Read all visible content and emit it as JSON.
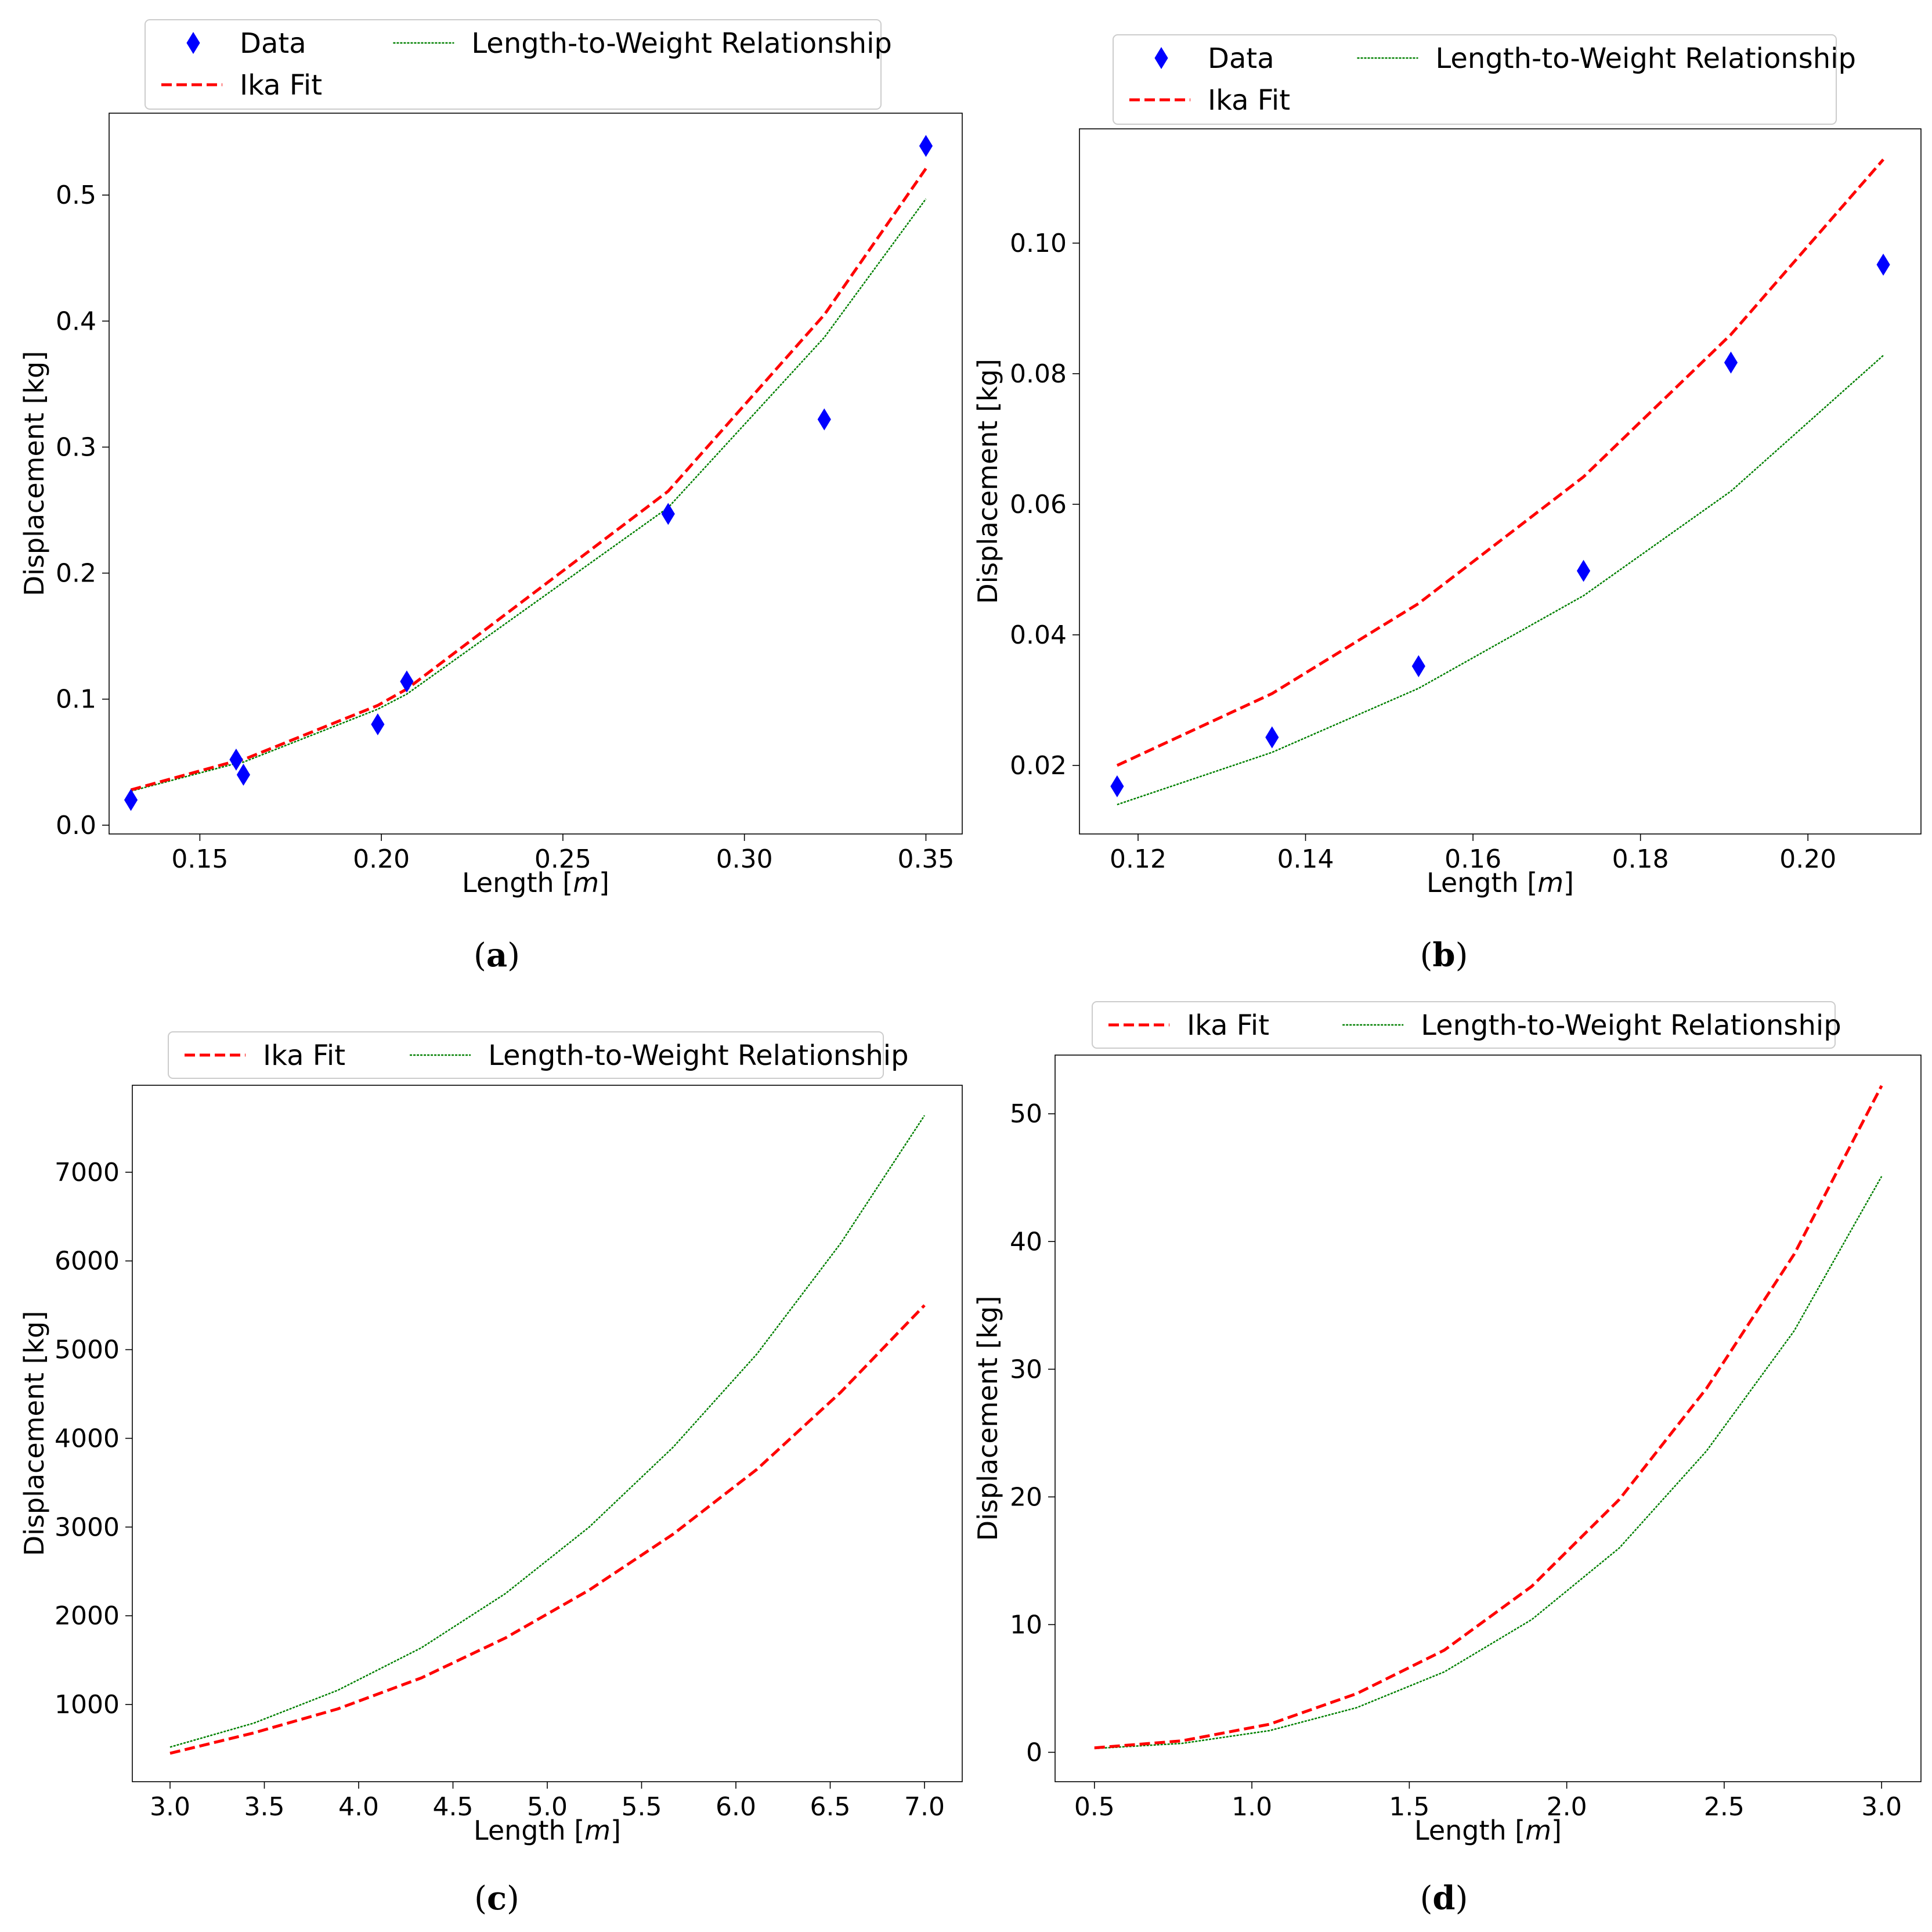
{
  "colors": {
    "data": "#0000ff",
    "ika": "#ff0000",
    "ltw": "#008000"
  },
  "chart_data": [
    {
      "panel": "(a)",
      "caption_letter": "a",
      "type": "line",
      "xlabel_prefix": "Length [",
      "xlabel_unit": "m",
      "xlabel_suffix": "]",
      "ylabel": "Displacement [kg]",
      "xlim": [
        0.125,
        0.36
      ],
      "ylim": [
        -0.007,
        0.565
      ],
      "xticks": [
        0.15,
        0.2,
        0.25,
        0.3,
        0.35
      ],
      "xtick_labels": [
        "0.15",
        "0.20",
        "0.25",
        "0.30",
        "0.35"
      ],
      "yticks": [
        0.0,
        0.1,
        0.2,
        0.3,
        0.4,
        0.5
      ],
      "ytick_labels": [
        "0.0",
        "0.1",
        "0.2",
        "0.3",
        "0.4",
        "0.5"
      ],
      "legend": {
        "position": "top",
        "ncol": 2,
        "entries": [
          "Data",
          "Length-to-Weight Relationship",
          "Ika Fit"
        ]
      },
      "series": [
        {
          "name": "Data",
          "kind": "scatter",
          "color": "#0000ff",
          "x": [
            0.131,
            0.16,
            0.162,
            0.199,
            0.207,
            0.279,
            0.322,
            0.35
          ],
          "y": [
            0.02,
            0.052,
            0.04,
            0.08,
            0.114,
            0.247,
            0.322,
            0.539
          ]
        },
        {
          "name": "Ika Fit",
          "kind": "dashed",
          "color": "#ff0000",
          "x": [
            0.131,
            0.16,
            0.162,
            0.199,
            0.207,
            0.279,
            0.322,
            0.35
          ],
          "y": [
            0.028,
            0.051,
            0.052,
            0.095,
            0.108,
            0.265,
            0.405,
            0.521
          ]
        },
        {
          "name": "Length-to-Weight Relationship",
          "kind": "dotted",
          "color": "#008000",
          "x": [
            0.131,
            0.16,
            0.162,
            0.199,
            0.207,
            0.279,
            0.322,
            0.35
          ],
          "y": [
            0.027,
            0.049,
            0.05,
            0.092,
            0.104,
            0.252,
            0.387,
            0.497
          ]
        }
      ]
    },
    {
      "panel": "(b)",
      "caption_letter": "b",
      "type": "line",
      "xlabel_prefix": "Length [",
      "xlabel_unit": "m",
      "xlabel_suffix": "]",
      "ylabel": "Displacement [kg]",
      "xlim": [
        0.113,
        0.2135
      ],
      "ylim": [
        0.0095,
        0.1175
      ],
      "xticks": [
        0.12,
        0.14,
        0.16,
        0.18,
        0.2
      ],
      "xtick_labels": [
        "0.12",
        "0.14",
        "0.16",
        "0.18",
        "0.20"
      ],
      "yticks": [
        0.02,
        0.04,
        0.06,
        0.08,
        0.1
      ],
      "ytick_labels": [
        "0.02",
        "0.04",
        "0.06",
        "0.08",
        "0.10"
      ],
      "legend": {
        "position": "top",
        "ncol": 2,
        "entries": [
          "Data",
          "Length-to-Weight Relationship",
          "Ika Fit"
        ]
      },
      "series": [
        {
          "name": "Data",
          "kind": "scatter",
          "color": "#0000ff",
          "x": [
            0.1175,
            0.136,
            0.1535,
            0.1732,
            0.1908,
            0.209
          ],
          "y": [
            0.0168,
            0.0243,
            0.0352,
            0.0498,
            0.0817,
            0.0967
          ]
        },
        {
          "name": "Ika Fit",
          "kind": "dashed",
          "color": "#ff0000",
          "x": [
            0.1175,
            0.136,
            0.1535,
            0.1732,
            0.1908,
            0.209
          ],
          "y": [
            0.02,
            0.031,
            0.0448,
            0.0642,
            0.086,
            0.1128
          ]
        },
        {
          "name": "Length-to-Weight Relationship",
          "kind": "dotted",
          "color": "#008000",
          "x": [
            0.1175,
            0.136,
            0.1535,
            0.1732,
            0.1908,
            0.209
          ],
          "y": [
            0.014,
            0.022,
            0.0318,
            0.046,
            0.062,
            0.0828
          ]
        }
      ]
    },
    {
      "panel": "(c)",
      "caption_letter": "c",
      "type": "line",
      "xlabel_prefix": "Length [",
      "xlabel_unit": "m",
      "xlabel_suffix": "]",
      "ylabel": "Displacement [kg]",
      "xlim": [
        2.8,
        7.2
      ],
      "ylim": [
        130,
        7980
      ],
      "xticks": [
        3.0,
        3.5,
        4.0,
        4.5,
        5.0,
        5.5,
        6.0,
        6.5,
        7.0
      ],
      "xtick_labels": [
        "3.0",
        "3.5",
        "4.0",
        "4.5",
        "5.0",
        "5.5",
        "6.0",
        "6.5",
        "7.0"
      ],
      "yticks": [
        1000,
        2000,
        3000,
        4000,
        5000,
        6000,
        7000
      ],
      "ytick_labels": [
        "1000",
        "2000",
        "3000",
        "4000",
        "5000",
        "6000",
        "7000"
      ],
      "legend": {
        "position": "top",
        "ncol": 2,
        "entries": [
          "Ika Fit",
          "Length-to-Weight Relationship"
        ]
      },
      "series": [
        {
          "name": "Ika Fit",
          "kind": "dashed",
          "color": "#ff0000",
          "x": [
            3.0,
            3.444,
            3.889,
            4.333,
            4.778,
            5.222,
            5.667,
            6.111,
            6.556,
            7.0
          ],
          "y": [
            450,
            680,
            950,
            1300,
            1750,
            2290,
            2920,
            3650,
            4520,
            5500
          ]
        },
        {
          "name": "Length-to-Weight Relationship",
          "kind": "dotted",
          "color": "#008000",
          "x": [
            3.0,
            3.444,
            3.889,
            4.333,
            4.778,
            5.222,
            5.667,
            6.111,
            6.556,
            7.0
          ],
          "y": [
            520,
            790,
            1160,
            1640,
            2250,
            3000,
            3900,
            4950,
            6200,
            7640
          ]
        }
      ]
    },
    {
      "panel": "(d)",
      "caption_letter": "d",
      "type": "line",
      "xlabel_prefix": "Length [",
      "xlabel_unit": "m",
      "xlabel_suffix": "]",
      "ylabel": "Displacement [kg]",
      "xlim": [
        0.375,
        3.125
      ],
      "ylim": [
        -2.3,
        54.6
      ],
      "xticks": [
        0.5,
        1.0,
        1.5,
        2.0,
        2.5,
        3.0
      ],
      "xtick_labels": [
        "0.5",
        "1.0",
        "1.5",
        "2.0",
        "2.5",
        "3.0"
      ],
      "yticks": [
        0,
        10,
        20,
        30,
        40,
        50
      ],
      "ytick_labels": [
        "0",
        "10",
        "20",
        "30",
        "40",
        "50"
      ],
      "legend": {
        "position": "top",
        "ncol": 2,
        "entries": [
          "Ika Fit",
          "Length-to-Weight Relationship"
        ]
      },
      "series": [
        {
          "name": "Ika Fit",
          "kind": "dashed",
          "color": "#ff0000",
          "x": [
            0.5,
            0.778,
            1.056,
            1.333,
            1.611,
            1.889,
            2.167,
            2.444,
            2.722,
            3.0
          ],
          "y": [
            0.35,
            0.9,
            2.2,
            4.6,
            8.0,
            13.0,
            19.8,
            28.5,
            39.0,
            52.2
          ]
        },
        {
          "name": "Length-to-Weight Relationship",
          "kind": "dotted",
          "color": "#008000",
          "x": [
            0.5,
            0.778,
            1.056,
            1.333,
            1.611,
            1.889,
            2.167,
            2.444,
            2.722,
            3.0
          ],
          "y": [
            0.3,
            0.7,
            1.7,
            3.5,
            6.3,
            10.4,
            16.0,
            23.6,
            33.0,
            45.1
          ]
        }
      ]
    }
  ]
}
